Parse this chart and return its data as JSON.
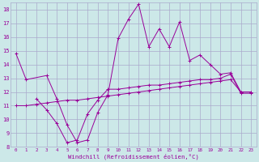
{
  "xlabel": "Windchill (Refroidissement éolien,°C)",
  "xlim": [
    -0.5,
    23.5
  ],
  "ylim": [
    8,
    18.5
  ],
  "xticks": [
    0,
    1,
    2,
    3,
    4,
    5,
    6,
    7,
    8,
    9,
    10,
    11,
    12,
    13,
    14,
    15,
    16,
    17,
    18,
    19,
    20,
    21,
    22,
    23
  ],
  "yticks": [
    8,
    9,
    10,
    11,
    12,
    13,
    14,
    15,
    16,
    17,
    18
  ],
  "background_color": "#cce8e8",
  "grid_color": "#aaaacc",
  "line_color": "#990099",
  "line1_x": [
    0,
    1,
    3,
    4,
    5,
    6,
    7,
    8,
    9,
    10,
    11,
    12,
    13,
    14,
    15,
    16,
    17,
    18,
    19,
    20,
    21,
    22,
    23
  ],
  "line1_y": [
    14.8,
    12.9,
    13.2,
    11.5,
    9.6,
    8.3,
    8.5,
    10.5,
    11.8,
    15.9,
    17.3,
    18.4,
    15.3,
    16.6,
    15.3,
    17.1,
    14.3,
    14.7,
    14.0,
    13.3,
    13.4,
    12.0,
    12.0
  ],
  "line2_x": [
    2,
    3,
    4,
    5,
    6,
    7,
    8,
    9,
    10,
    11,
    12,
    13,
    14,
    15,
    16,
    17,
    18,
    19,
    20,
    21,
    22,
    23
  ],
  "line2_y": [
    11.5,
    10.7,
    9.7,
    8.3,
    8.5,
    10.4,
    11.4,
    12.2,
    12.2,
    12.3,
    12.4,
    12.5,
    12.5,
    12.6,
    12.7,
    12.8,
    12.9,
    12.9,
    13.0,
    13.3,
    11.9,
    11.9
  ],
  "line3_x": [
    0,
    1,
    2,
    3,
    4,
    5,
    6,
    7,
    8,
    9,
    10,
    11,
    12,
    13,
    14,
    15,
    16,
    17,
    18,
    19,
    20,
    21,
    22,
    23
  ],
  "line3_y": [
    11.0,
    11.0,
    11.1,
    11.2,
    11.3,
    11.4,
    11.4,
    11.5,
    11.6,
    11.7,
    11.8,
    11.9,
    12.0,
    12.1,
    12.2,
    12.3,
    12.4,
    12.5,
    12.6,
    12.7,
    12.8,
    12.9,
    12.0,
    12.0
  ]
}
